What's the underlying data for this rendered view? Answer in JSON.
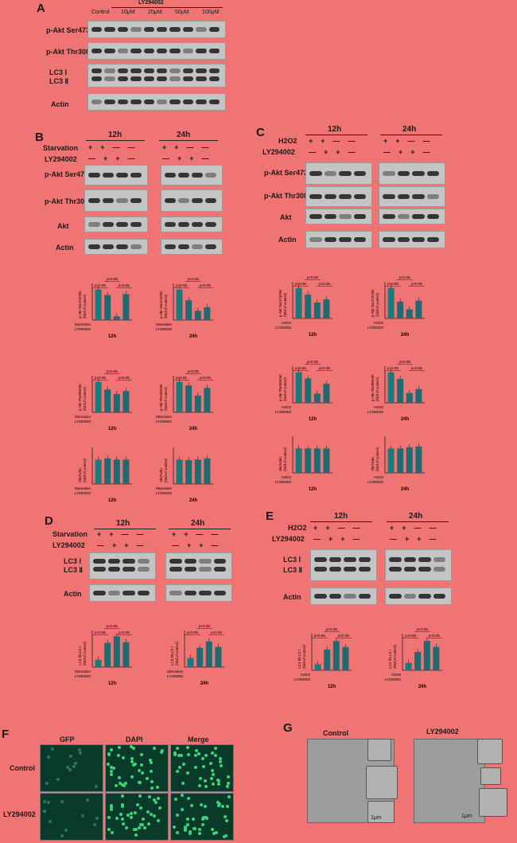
{
  "panels": {
    "A": {
      "letter": "A",
      "treatment_header": "LY294002",
      "columns": [
        "Control",
        "10μM",
        "20μM",
        "50μM",
        "100μM"
      ],
      "rows": [
        "p-Akt Ser473",
        "p-Akt Thr308",
        "LC3 Ⅰ",
        "LC3 Ⅱ",
        "Actin"
      ]
    },
    "B": {
      "letter": "B",
      "times": [
        "12h",
        "24h"
      ],
      "treatments": [
        "Starvation",
        "LY294002"
      ],
      "signs_starvation": [
        "+",
        "+",
        "—",
        "—"
      ],
      "signs_ly": [
        "—",
        "+",
        "+",
        "—"
      ],
      "rows": [
        "p-Akt Ser473",
        "p-Akt Thr308",
        "Akt",
        "Actin"
      ]
    },
    "C": {
      "letter": "C",
      "times": [
        "12h",
        "24h"
      ],
      "treatments": [
        "H2O2",
        "LY294002"
      ],
      "signs_h2o2": [
        "+",
        "+",
        "—",
        "—"
      ],
      "signs_ly": [
        "—",
        "+",
        "+",
        "—"
      ],
      "rows": [
        "p-Akt Ser473",
        "p-Akt Thr308",
        "Akt",
        "Actin"
      ]
    },
    "D": {
      "letter": "D",
      "times": [
        "12h",
        "24h"
      ],
      "treatments": [
        "Starvation",
        "LY294002"
      ],
      "rows": [
        "LC3 Ⅰ",
        "LC3 Ⅱ",
        "Actin"
      ]
    },
    "E": {
      "letter": "E",
      "times": [
        "12h",
        "24h"
      ],
      "treatments": [
        "H2O2",
        "LY294002"
      ],
      "rows": [
        "LC3 Ⅰ",
        "LC3 Ⅱ",
        "Actin"
      ]
    },
    "F": {
      "letter": "F",
      "columns": [
        "GFP",
        "DAPI",
        "Merge"
      ],
      "rows": [
        "Control",
        "LY294002"
      ]
    },
    "G": {
      "letter": "G",
      "columns": [
        "Control",
        "LY294002"
      ],
      "scale": "1μm"
    }
  },
  "chart_data": [
    {
      "type": "bar",
      "id": "B-ser-12",
      "ylabel": "p-Akt Ser473/Akt",
      "sublabel": "(fold of control)",
      "time": "12h",
      "values": [
        1.0,
        0.82,
        0.12,
        0.85
      ],
      "ylim": [
        0,
        1.2
      ],
      "sig": [
        "p<0.05",
        "p<0.05",
        "p<0.05"
      ],
      "rows": [
        "Starvation",
        "LY294002"
      ]
    },
    {
      "type": "bar",
      "id": "B-ser-24",
      "ylabel": "p-Akt Ser473/Akt",
      "sublabel": "(fold of control)",
      "time": "24h",
      "values": [
        1.0,
        0.65,
        0.3,
        0.42
      ],
      "ylim": [
        0,
        1.2
      ],
      "sig": [
        "p<0.05",
        "p<0.05",
        "p<0.05"
      ],
      "rows": [
        "Starvation",
        "LY294002"
      ]
    },
    {
      "type": "bar",
      "id": "B-thr-12",
      "ylabel": "p-Akt Thr308/Akt",
      "sublabel": "(fold of control)",
      "time": "12h",
      "values": [
        1.0,
        0.75,
        0.6,
        0.7
      ],
      "ylim": [
        0,
        1.2
      ],
      "sig": [
        "p<0.05",
        "p<0.05",
        "p<0.05"
      ],
      "rows": [
        "Starvation",
        "LY294002"
      ]
    },
    {
      "type": "bar",
      "id": "B-thr-24",
      "ylabel": "p-Akt Thr308/Akt",
      "sublabel": "(fold of control)",
      "time": "24h",
      "values": [
        1.0,
        0.88,
        0.55,
        0.8
      ],
      "ylim": [
        0,
        1.2
      ],
      "sig": [
        "p<0.05",
        "p<0.05",
        "p<0.05"
      ],
      "rows": [
        "Starvation",
        "LY294002"
      ]
    },
    {
      "type": "bar",
      "id": "B-akt-12",
      "ylabel": "Akt/Actin",
      "sublabel": "(fold of control)",
      "time": "12h",
      "values": [
        1.0,
        1.05,
        1.0,
        1.0
      ],
      "ylim": [
        0,
        1.5
      ],
      "sig": [],
      "rows": [
        "Starvation",
        "LY294002"
      ]
    },
    {
      "type": "bar",
      "id": "B-akt-24",
      "ylabel": "Akt/Actin",
      "sublabel": "(fold of control)",
      "time": "24h",
      "values": [
        1.0,
        0.98,
        1.0,
        1.05
      ],
      "ylim": [
        0,
        1.5
      ],
      "sig": [],
      "rows": [
        "Starvation",
        "LY294002"
      ]
    },
    {
      "type": "bar",
      "id": "C-ser-12",
      "ylabel": "p-Akt Ser473/Akt",
      "sublabel": "(fold of control)",
      "time": "12h",
      "values": [
        1.0,
        0.78,
        0.52,
        0.62
      ],
      "ylim": [
        0,
        1.2
      ],
      "sig": [
        "p<0.05",
        "p<0.05",
        "p<0.05"
      ],
      "rows": [
        "H2O2",
        "LY294002"
      ]
    },
    {
      "type": "bar",
      "id": "C-ser-24",
      "ylabel": "p-Akt Ser473/Akt",
      "sublabel": "(fold of control)",
      "time": "24h",
      "values": [
        1.0,
        0.55,
        0.3,
        0.58
      ],
      "ylim": [
        0,
        1.2
      ],
      "sig": [
        "p<0.05",
        "p<0.05",
        "p<0.05"
      ],
      "rows": [
        "H2O2",
        "LY294002"
      ]
    },
    {
      "type": "bar",
      "id": "C-thr-12",
      "ylabel": "p-Akt Thr308/Akt",
      "sublabel": "(fold of control)",
      "time": "12h",
      "values": [
        1.0,
        0.8,
        0.3,
        0.62
      ],
      "ylim": [
        0,
        1.2
      ],
      "sig": [
        "p<0.05",
        "p<0.05",
        "p<0.05"
      ],
      "rows": [
        "H2O2",
        "LY294002"
      ]
    },
    {
      "type": "bar",
      "id": "C-thr-24",
      "ylabel": "p-Akt Thr308/Akt",
      "sublabel": "(fold of control)",
      "time": "24h",
      "values": [
        1.0,
        0.78,
        0.32,
        0.45
      ],
      "ylim": [
        0,
        1.2
      ],
      "sig": [
        "p<0.05",
        "p<0.05",
        "p<0.05"
      ],
      "rows": [
        "H2O2",
        "LY294002"
      ]
    },
    {
      "type": "bar",
      "id": "C-akt-12",
      "ylabel": "Akt/Actin",
      "sublabel": "(fold of control)",
      "time": "12h",
      "values": [
        1.0,
        1.0,
        1.0,
        1.0
      ],
      "ylim": [
        0,
        1.5
      ],
      "sig": [],
      "rows": [
        "H2O2",
        "LY294002"
      ]
    },
    {
      "type": "bar",
      "id": "C-akt-24",
      "ylabel": "Akt/Actin",
      "sublabel": "(fold of control)",
      "time": "24h",
      "values": [
        1.0,
        1.0,
        1.05,
        1.08
      ],
      "ylim": [
        0,
        1.5
      ],
      "sig": [],
      "rows": [
        "H2O2",
        "LY294002"
      ]
    },
    {
      "type": "bar",
      "id": "D-12",
      "ylabel": "LC3 Ⅱ/LC3 Ⅰ",
      "sublabel": "(fold of control)",
      "time": "12h",
      "values": [
        1.0,
        3.3,
        4.2,
        3.4
      ],
      "ylim": [
        0,
        5
      ],
      "sig": [
        "p<0.05",
        "p<0.05",
        "p<0.05"
      ],
      "rows": [
        "Starvation",
        "LY294002"
      ]
    },
    {
      "type": "bar",
      "id": "D-24",
      "ylabel": "LC3 Ⅱ/LC3 Ⅰ",
      "sublabel": "(fold of control)",
      "time": "24h",
      "values": [
        1.0,
        2.1,
        2.8,
        2.2
      ],
      "ylim": [
        0,
        4
      ],
      "sig": [
        "p<0.05",
        "p<0.05",
        "p<0.05"
      ],
      "rows": [
        "Starvation",
        "LY294002"
      ]
    },
    {
      "type": "bar",
      "id": "E-12",
      "ylabel": "LC3 Ⅱ/LC3 Ⅰ",
      "sublabel": "(fold of control)",
      "time": "12h",
      "values": [
        1.0,
        3.4,
        4.8,
        3.8
      ],
      "ylim": [
        0,
        6
      ],
      "sig": [
        "p<0.05",
        "p<0.05",
        "p<0.05"
      ],
      "rows": [
        "H2O2",
        "LY294002"
      ]
    },
    {
      "type": "bar",
      "id": "E-24",
      "ylabel": "LC3 Ⅱ/LC3 Ⅰ",
      "sublabel": "(fold of control)",
      "time": "24h",
      "values": [
        1.0,
        2.5,
        4.0,
        3.2
      ],
      "ylim": [
        0,
        5
      ],
      "sig": [
        "p<0.05",
        "p<0.05",
        "p<0.05"
      ],
      "rows": [
        "H2O2",
        "LY294002"
      ]
    }
  ]
}
